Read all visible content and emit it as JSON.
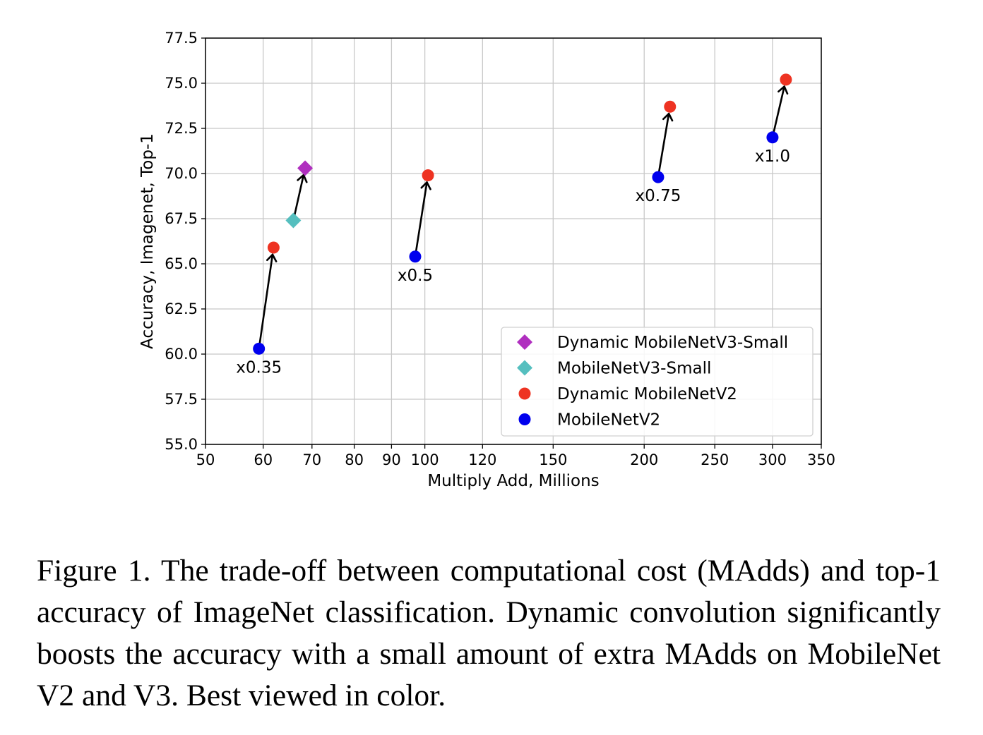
{
  "chart_data": {
    "type": "scatter",
    "xscale": "log",
    "xlabel": "Multiply Add, Millions",
    "ylabel": "Accuracy, Imagenet, Top-1",
    "xlim": [
      50,
      350
    ],
    "ylim": [
      55.0,
      77.5
    ],
    "xticks": [
      50,
      60,
      70,
      80,
      90,
      100,
      120,
      150,
      200,
      250,
      300,
      350
    ],
    "yticks": [
      "55.0",
      "57.5",
      "60.0",
      "62.5",
      "65.0",
      "67.5",
      "70.0",
      "72.5",
      "75.0",
      "77.5"
    ],
    "grid": true,
    "legend_position": "lower-right",
    "series": [
      {
        "name": "Dynamic MobileNetV3-Small",
        "marker": "diamond",
        "color": "#b02fbf",
        "points": [
          {
            "x": 68.5,
            "y": 70.3
          }
        ]
      },
      {
        "name": "MobileNetV3-Small",
        "marker": "diamond",
        "color": "#55bfbf",
        "points": [
          {
            "x": 66.0,
            "y": 67.4
          }
        ]
      },
      {
        "name": "Dynamic MobileNetV2",
        "marker": "circle",
        "color": "#ee3322",
        "points": [
          {
            "x": 62.0,
            "y": 65.9
          },
          {
            "x": 101.0,
            "y": 69.9
          },
          {
            "x": 217.0,
            "y": 73.7
          },
          {
            "x": 313.0,
            "y": 75.2
          }
        ]
      },
      {
        "name": "MobileNetV2",
        "marker": "circle",
        "color": "#0000ee",
        "points": [
          {
            "x": 59.2,
            "y": 60.3
          },
          {
            "x": 97.0,
            "y": 65.4
          },
          {
            "x": 209.0,
            "y": 69.8
          },
          {
            "x": 300.0,
            "y": 72.0
          }
        ]
      }
    ],
    "arrows": [
      {
        "from": [
          59.2,
          60.3
        ],
        "to": [
          62.0,
          65.9
        ]
      },
      {
        "from": [
          97.0,
          65.4
        ],
        "to": [
          101.0,
          69.9
        ]
      },
      {
        "from": [
          209.0,
          69.8
        ],
        "to": [
          217.0,
          73.7
        ]
      },
      {
        "from": [
          300.0,
          72.0
        ],
        "to": [
          313.0,
          75.2
        ]
      },
      {
        "from": [
          66.0,
          67.4
        ],
        "to": [
          68.5,
          70.3
        ]
      }
    ],
    "annotations": [
      {
        "text": "x0.35",
        "x": 59.2,
        "y": 60.3
      },
      {
        "text": "x0.5",
        "x": 97.0,
        "y": 65.4
      },
      {
        "text": "x0.75",
        "x": 209.0,
        "y": 69.8
      },
      {
        "text": "x1.0",
        "x": 300.0,
        "y": 72.0
      }
    ]
  },
  "caption": {
    "text": "Figure 1. The trade-off between computational cost (MAdds) and top-1 accuracy of ImageNet classification.  Dynamic convolution significantly boosts the accuracy with a small amount of extra MAdds on MobileNet V2 and V3. Best viewed in color."
  }
}
